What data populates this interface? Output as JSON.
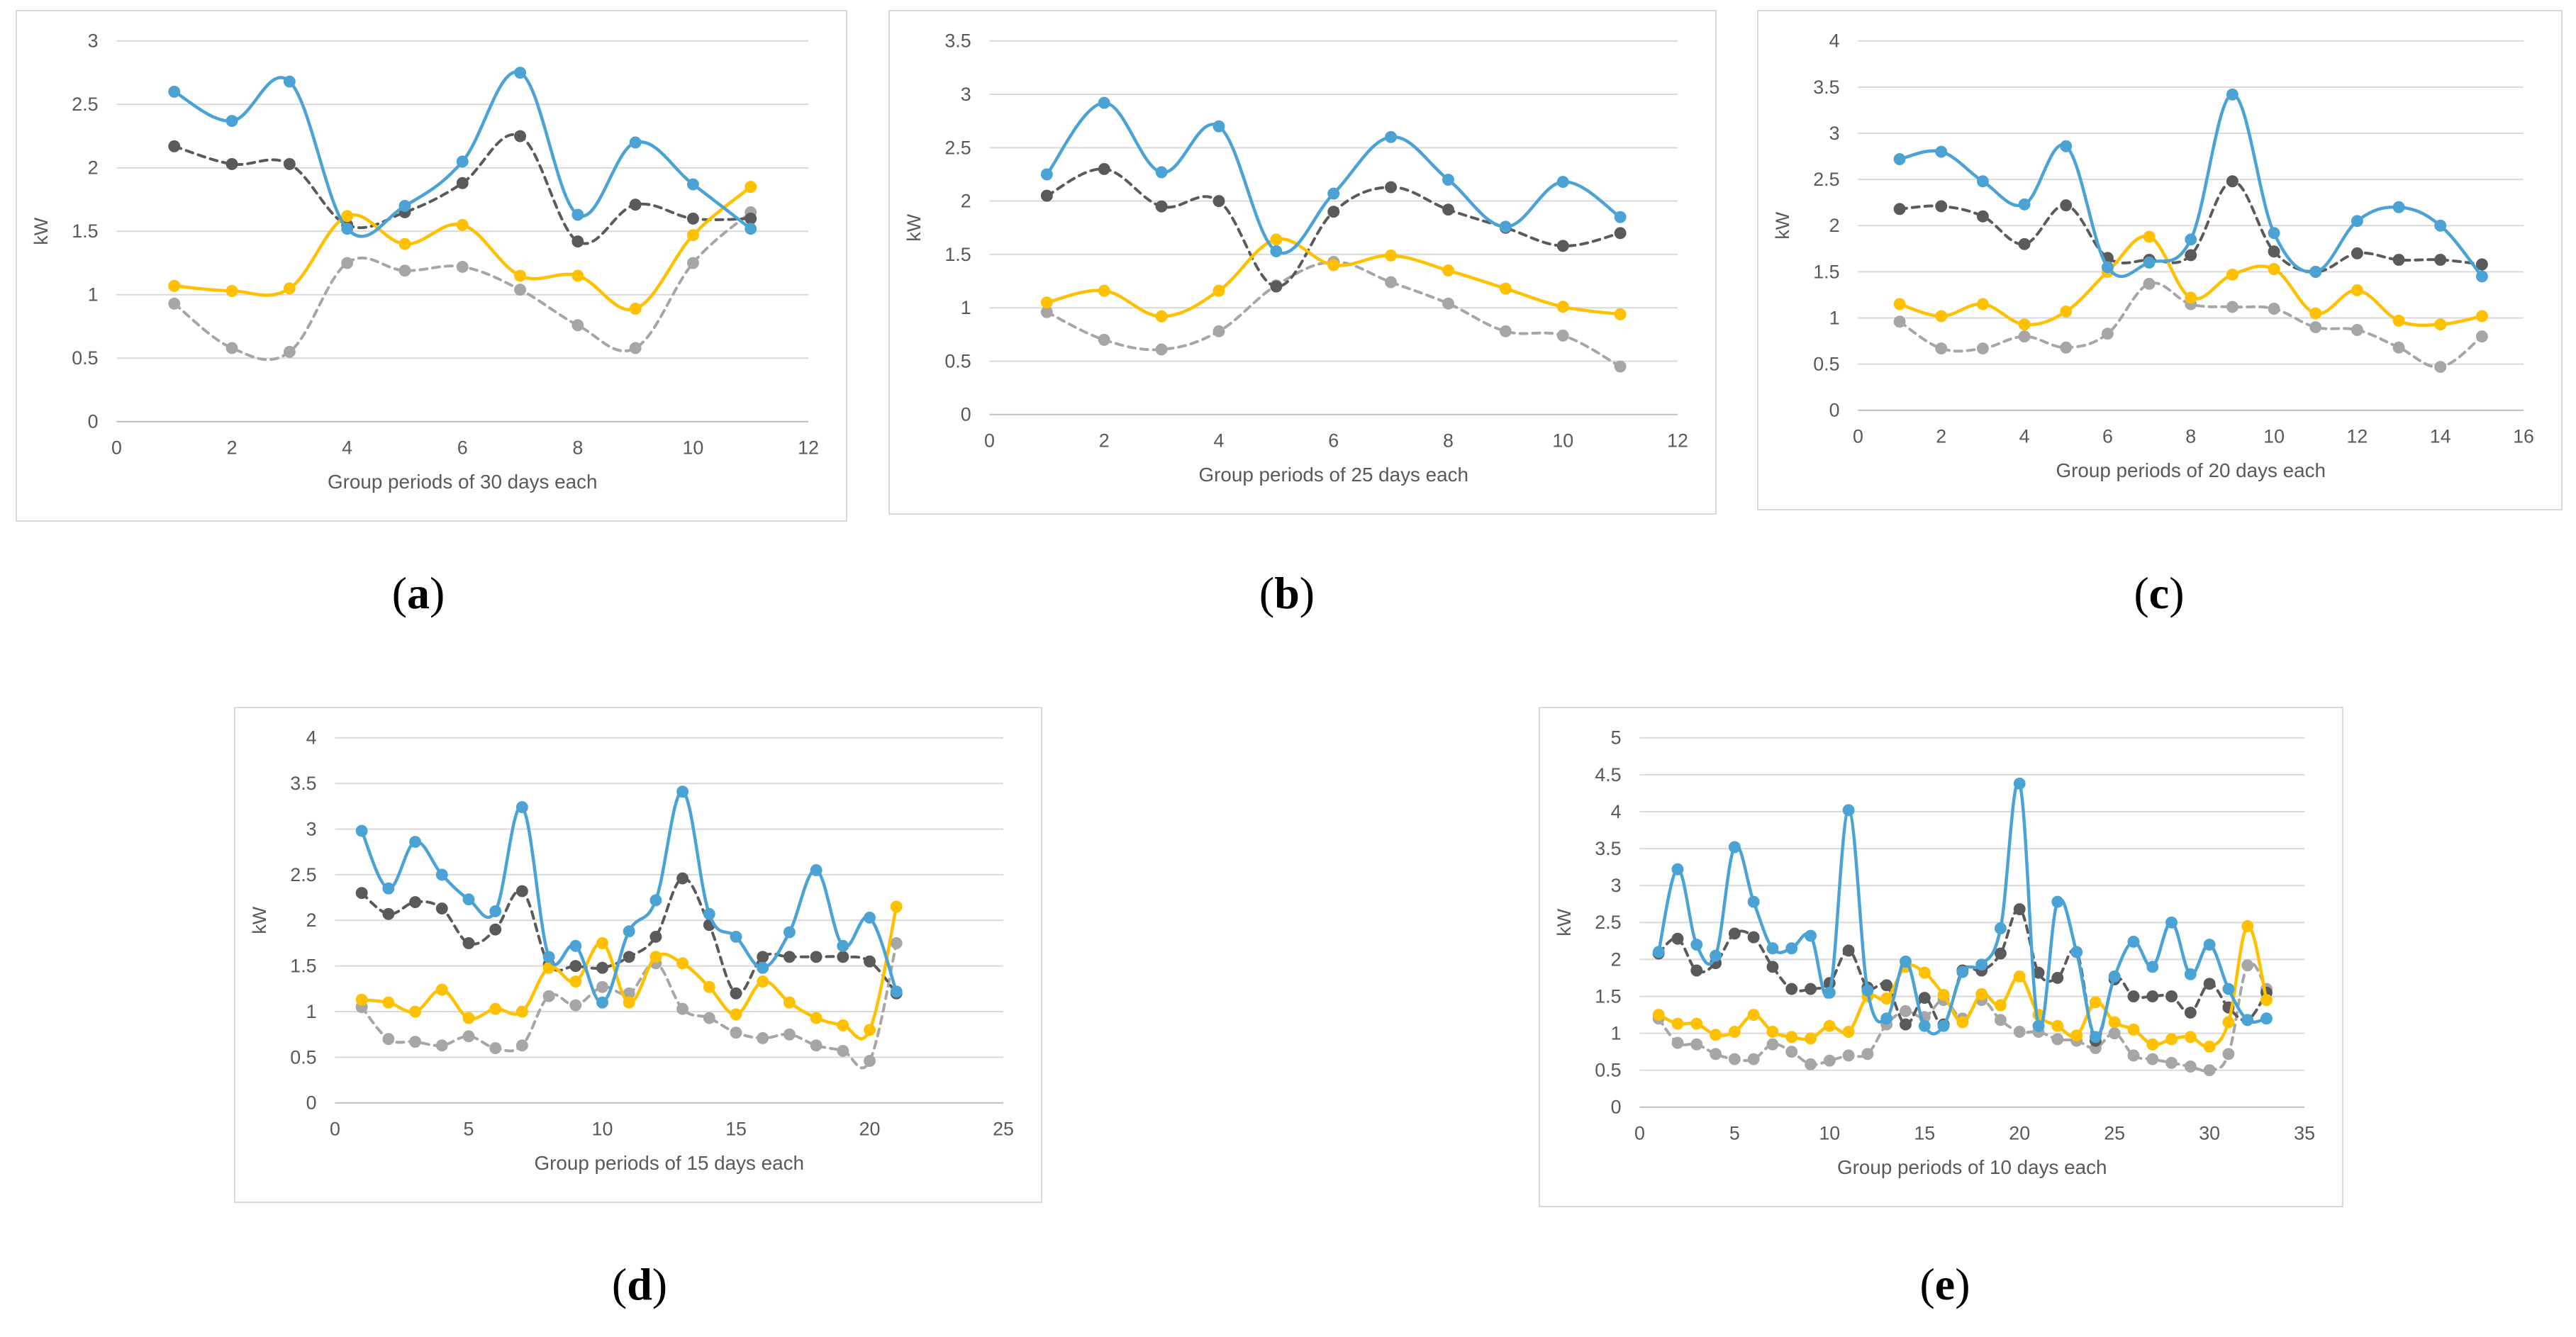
{
  "colors": {
    "s1": "#4aa3d4",
    "s2": "#5a5a5a",
    "s3": "#ffc000",
    "s4": "#a6a6a6",
    "grid": "#d9d9d9",
    "axis": "#bfbfbf"
  },
  "chart_data": [
    {
      "id": "a",
      "type": "line",
      "caption_letter": "a",
      "ylabel": "kW",
      "xlabel": "Group periods of 30 days each",
      "xlim": [
        0,
        12
      ],
      "xstep": 2,
      "ylim": [
        0,
        3
      ],
      "ystep": 0.5,
      "x": [
        1,
        2,
        3,
        4,
        5,
        6,
        7,
        8,
        9,
        10,
        11
      ],
      "series": [
        {
          "name": "series-1",
          "style": "solid",
          "colorKey": "s1",
          "values": [
            2.6,
            2.37,
            2.68,
            1.52,
            1.7,
            2.05,
            2.75,
            1.63,
            2.2,
            1.87,
            1.52
          ]
        },
        {
          "name": "series-2",
          "style": "dashed",
          "colorKey": "s2",
          "values": [
            2.17,
            2.03,
            2.03,
            1.55,
            1.65,
            1.88,
            2.25,
            1.42,
            1.71,
            1.6,
            1.6
          ]
        },
        {
          "name": "series-3",
          "style": "solid",
          "colorKey": "s3",
          "values": [
            1.07,
            1.03,
            1.05,
            1.62,
            1.4,
            1.55,
            1.15,
            1.15,
            0.89,
            1.47,
            1.85
          ]
        },
        {
          "name": "series-4",
          "style": "dashed",
          "colorKey": "s4",
          "values": [
            0.93,
            0.58,
            0.55,
            1.25,
            1.19,
            1.22,
            1.04,
            0.76,
            0.58,
            1.25,
            1.65
          ]
        }
      ]
    },
    {
      "id": "b",
      "type": "line",
      "caption_letter": "b",
      "ylabel": "kW",
      "xlabel": "Group periods of 25 days each",
      "xlim": [
        0,
        12
      ],
      "xstep": 2,
      "ylim": [
        0,
        3.5
      ],
      "ystep": 0.5,
      "x": [
        1,
        2,
        3,
        4,
        5,
        6,
        7,
        8,
        9,
        10,
        11
      ],
      "series": [
        {
          "name": "series-1",
          "style": "solid",
          "colorKey": "s1",
          "values": [
            2.25,
            2.92,
            2.27,
            2.7,
            1.53,
            2.07,
            2.6,
            2.2,
            1.76,
            2.18,
            1.85
          ]
        },
        {
          "name": "series-2",
          "style": "dashed",
          "colorKey": "s2",
          "values": [
            2.05,
            2.3,
            1.95,
            2.0,
            1.2,
            1.9,
            2.13,
            1.92,
            1.75,
            1.58,
            1.7
          ]
        },
        {
          "name": "series-3",
          "style": "solid",
          "colorKey": "s3",
          "values": [
            1.05,
            1.16,
            0.92,
            1.16,
            1.64,
            1.4,
            1.49,
            1.35,
            1.18,
            1.01,
            0.94
          ]
        },
        {
          "name": "series-4",
          "style": "dashed",
          "colorKey": "s4",
          "values": [
            0.96,
            0.7,
            0.61,
            0.78,
            1.21,
            1.43,
            1.24,
            1.04,
            0.78,
            0.74,
            0.45
          ]
        }
      ]
    },
    {
      "id": "c",
      "type": "line",
      "caption_letter": "c",
      "ylabel": "kW",
      "xlabel": "Group periods of 20 days each",
      "xlim": [
        0,
        16
      ],
      "xstep": 2,
      "ylim": [
        0,
        4
      ],
      "ystep": 0.5,
      "x": [
        1,
        2,
        3,
        4,
        5,
        6,
        7,
        8,
        9,
        10,
        11,
        12,
        13,
        14,
        15
      ],
      "series": [
        {
          "name": "series-1",
          "style": "solid",
          "colorKey": "s1",
          "values": [
            2.72,
            2.8,
            2.48,
            2.23,
            2.86,
            1.55,
            1.6,
            1.85,
            3.42,
            1.92,
            1.5,
            2.05,
            2.2,
            2.0,
            1.45
          ]
        },
        {
          "name": "series-2",
          "style": "dashed",
          "colorKey": "s2",
          "values": [
            2.18,
            2.21,
            2.1,
            1.8,
            2.22,
            1.65,
            1.63,
            1.68,
            2.48,
            1.72,
            1.5,
            1.7,
            1.63,
            1.63,
            1.58
          ]
        },
        {
          "name": "series-3",
          "style": "solid",
          "colorKey": "s3",
          "values": [
            1.15,
            1.02,
            1.15,
            0.93,
            1.07,
            1.5,
            1.88,
            1.22,
            1.47,
            1.53,
            1.05,
            1.3,
            0.97,
            0.93,
            1.02
          ]
        },
        {
          "name": "series-4",
          "style": "dashed",
          "colorKey": "s4",
          "values": [
            0.96,
            0.67,
            0.67,
            0.8,
            0.68,
            0.83,
            1.37,
            1.15,
            1.12,
            1.1,
            0.9,
            0.87,
            0.68,
            0.47,
            0.8
          ]
        }
      ]
    },
    {
      "id": "d",
      "type": "line",
      "caption_letter": "d",
      "ylabel": "kW",
      "xlabel": "Group periods of 15 days each",
      "xlim": [
        0,
        25
      ],
      "xstep": 5,
      "ylim": [
        0,
        4
      ],
      "ystep": 0.5,
      "x": [
        1,
        2,
        3,
        4,
        5,
        6,
        7,
        8,
        9,
        10,
        11,
        12,
        13,
        14,
        15,
        16,
        17,
        18,
        19,
        20,
        21
      ],
      "series": [
        {
          "name": "series-1",
          "style": "solid",
          "colorKey": "s1",
          "values": [
            2.98,
            2.35,
            2.86,
            2.5,
            2.23,
            2.1,
            3.24,
            1.6,
            1.72,
            1.1,
            1.88,
            2.22,
            3.41,
            2.07,
            1.82,
            1.48,
            1.87,
            2.55,
            1.72,
            2.03,
            1.22
          ]
        },
        {
          "name": "series-2",
          "style": "dashed",
          "colorKey": "s2",
          "values": [
            2.3,
            2.07,
            2.2,
            2.13,
            1.75,
            1.9,
            2.32,
            1.52,
            1.5,
            1.48,
            1.6,
            1.82,
            2.46,
            1.95,
            1.2,
            1.6,
            1.6,
            1.6,
            1.6,
            1.55,
            1.2
          ]
        },
        {
          "name": "series-3",
          "style": "solid",
          "colorKey": "s3",
          "values": [
            1.13,
            1.1,
            1.0,
            1.24,
            0.93,
            1.03,
            1.0,
            1.48,
            1.33,
            1.75,
            1.1,
            1.6,
            1.53,
            1.27,
            0.97,
            1.33,
            1.1,
            0.93,
            0.85,
            0.8,
            2.15
          ]
        },
        {
          "name": "series-4",
          "style": "dashed",
          "colorKey": "s4",
          "values": [
            1.05,
            0.7,
            0.67,
            0.63,
            0.73,
            0.6,
            0.63,
            1.17,
            1.07,
            1.27,
            1.2,
            1.53,
            1.03,
            0.93,
            0.77,
            0.71,
            0.75,
            0.63,
            0.57,
            0.46,
            1.75
          ]
        }
      ]
    },
    {
      "id": "e",
      "type": "line",
      "caption_letter": "e",
      "ylabel": "kW",
      "xlabel": "Group periods of 10 days each",
      "xlim": [
        0,
        35
      ],
      "xstep": 5,
      "ylim": [
        0,
        5
      ],
      "ystep": 0.5,
      "x": [
        1,
        2,
        3,
        4,
        5,
        6,
        7,
        8,
        9,
        10,
        11,
        12,
        13,
        14,
        15,
        16,
        17,
        18,
        19,
        20,
        21,
        22,
        23,
        24,
        25,
        26,
        27,
        28,
        29,
        30,
        31,
        32,
        33
      ],
      "series": [
        {
          "name": "series-1",
          "style": "solid",
          "colorKey": "s1",
          "values": [
            2.1,
            3.22,
            2.2,
            2.05,
            3.52,
            2.78,
            2.15,
            2.15,
            2.32,
            1.55,
            4.02,
            1.58,
            1.2,
            1.97,
            1.1,
            1.1,
            1.83,
            1.93,
            2.42,
            4.38,
            1.1,
            2.78,
            2.1,
            0.95,
            1.77,
            2.24,
            1.9,
            2.5,
            1.8,
            2.2,
            1.6,
            1.18,
            1.2
          ]
        },
        {
          "name": "series-2",
          "style": "dashed",
          "colorKey": "s2",
          "values": [
            2.08,
            2.28,
            1.85,
            1.95,
            2.35,
            2.3,
            1.9,
            1.6,
            1.6,
            1.68,
            2.12,
            1.62,
            1.65,
            1.12,
            1.48,
            1.12,
            1.85,
            1.85,
            2.08,
            2.68,
            1.82,
            1.75,
            2.1,
            0.9,
            1.73,
            1.5,
            1.5,
            1.5,
            1.28,
            1.67,
            1.35,
            1.18,
            1.55
          ]
        },
        {
          "name": "series-3",
          "style": "solid",
          "colorKey": "s3",
          "values": [
            1.25,
            1.13,
            1.13,
            0.98,
            1.02,
            1.25,
            1.02,
            0.95,
            0.93,
            1.1,
            1.02,
            1.5,
            1.47,
            1.9,
            1.82,
            1.52,
            1.15,
            1.53,
            1.38,
            1.77,
            1.25,
            1.1,
            0.97,
            1.42,
            1.15,
            1.05,
            0.85,
            0.92,
            0.95,
            0.82,
            1.15,
            2.45,
            1.45
          ]
        },
        {
          "name": "series-4",
          "style": "dashed",
          "colorKey": "s4",
          "values": [
            1.2,
            0.87,
            0.85,
            0.72,
            0.65,
            0.65,
            0.85,
            0.75,
            0.58,
            0.63,
            0.7,
            0.72,
            1.12,
            1.3,
            1.22,
            1.45,
            1.2,
            1.45,
            1.18,
            1.02,
            1.02,
            0.92,
            0.9,
            0.8,
            1.0,
            0.7,
            0.65,
            0.6,
            0.55,
            0.5,
            0.72,
            1.92,
            1.6
          ]
        }
      ]
    }
  ]
}
